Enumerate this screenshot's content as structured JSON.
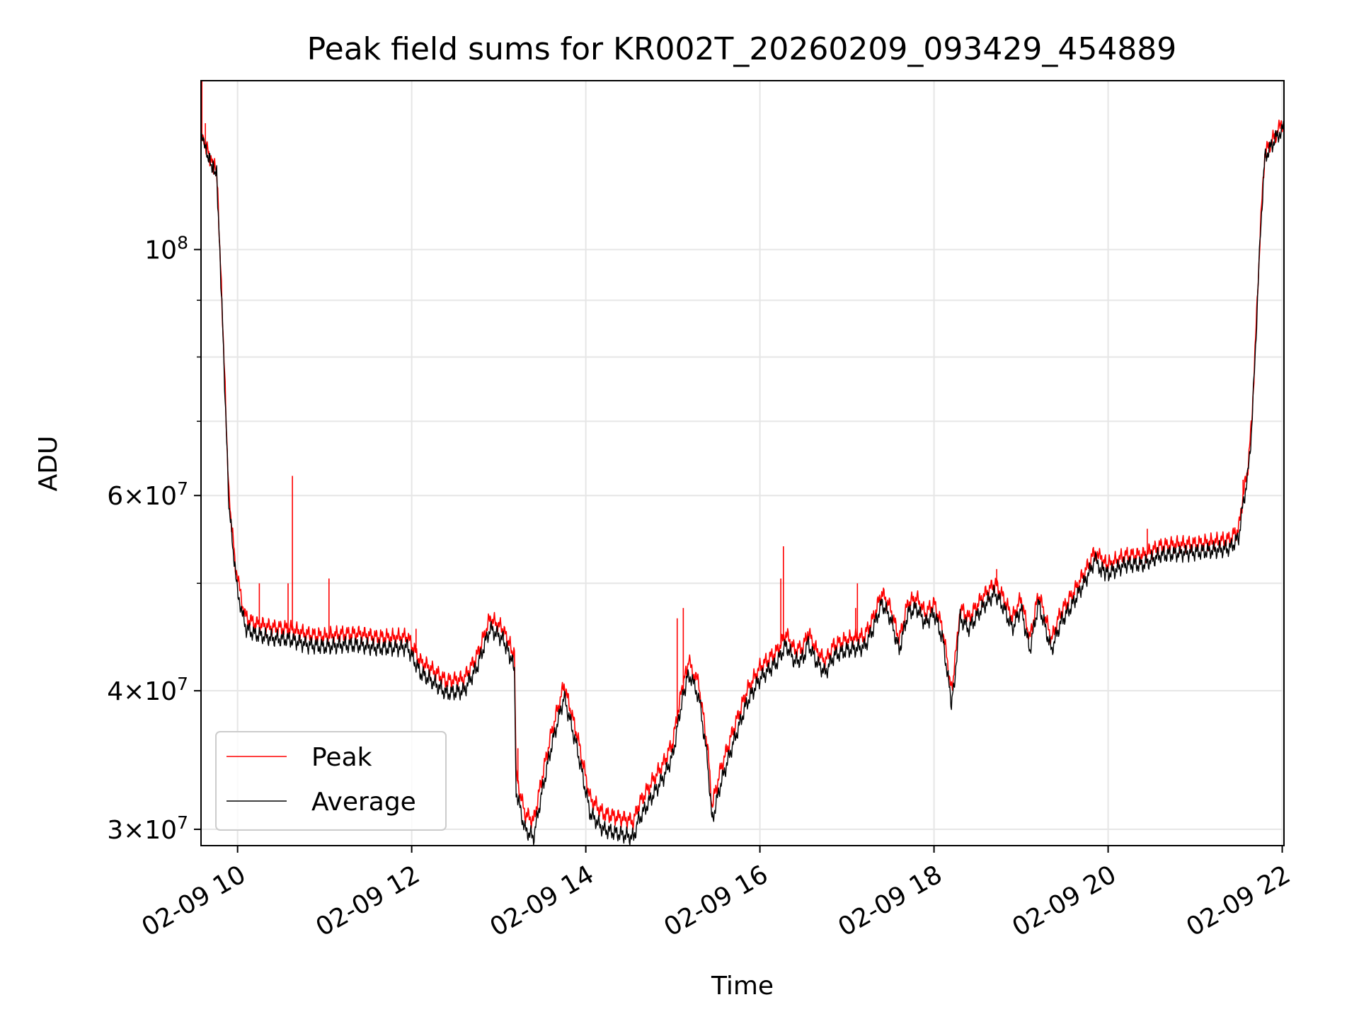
{
  "chart_data": {
    "type": "line",
    "title": "Peak field sums for KR002T_20260209_093429_454889",
    "xlabel": "Time",
    "ylabel": "ADU",
    "yscale": "log",
    "xlim": [
      9.58,
      22.02
    ],
    "ylim": [
      29000000,
      142000000
    ],
    "x_ticks": [
      {
        "value": 10,
        "label": "02-09 10"
      },
      {
        "value": 12,
        "label": "02-09 12"
      },
      {
        "value": 14,
        "label": "02-09 14"
      },
      {
        "value": 16,
        "label": "02-09 16"
      },
      {
        "value": 18,
        "label": "02-09 18"
      },
      {
        "value": 20,
        "label": "02-09 20"
      },
      {
        "value": 22,
        "label": "02-09 22"
      }
    ],
    "y_ticks": [
      {
        "value": 30000000,
        "base": "3",
        "exp": "7"
      },
      {
        "value": 40000000,
        "base": "4",
        "exp": "7"
      },
      {
        "value": 60000000,
        "base": "6",
        "exp": "7"
      },
      {
        "value": 100000000,
        "base": "",
        "exp": "8"
      }
    ],
    "y_minor_ticks": [
      50000000,
      70000000,
      80000000,
      90000000
    ],
    "grid": true,
    "legend_position": "lower-left",
    "series": [
      {
        "name": "Peak",
        "color": "#ff0000",
        "x": [
          9.58,
          9.62,
          9.7,
          9.76,
          9.82,
          9.9,
          9.98,
          10.05,
          10.1,
          10.2,
          10.4,
          10.6,
          10.8,
          11.0,
          11.2,
          11.4,
          11.6,
          11.8,
          11.95,
          12.1,
          12.2,
          12.4,
          12.6,
          12.75,
          12.9,
          13.05,
          13.18,
          13.2,
          13.3,
          13.4,
          13.5,
          13.6,
          13.75,
          13.9,
          14.05,
          14.2,
          14.4,
          14.55,
          14.6,
          14.75,
          14.9,
          15.0,
          15.1,
          15.18,
          15.3,
          15.4,
          15.45,
          15.55,
          15.7,
          15.85,
          16.0,
          16.2,
          16.3,
          16.4,
          16.5,
          16.55,
          16.65,
          16.75,
          16.85,
          17.0,
          17.2,
          17.3,
          17.4,
          17.5,
          17.6,
          17.7,
          17.8,
          17.9,
          18.0,
          18.1,
          18.2,
          18.23,
          18.3,
          18.4,
          18.55,
          18.7,
          18.8,
          18.9,
          19.0,
          19.1,
          19.2,
          19.35,
          19.45,
          19.6,
          19.75,
          19.85,
          19.92,
          20.0,
          20.2,
          20.4,
          20.6,
          20.8,
          21.0,
          21.2,
          21.4,
          21.5,
          21.55,
          21.6,
          21.65,
          21.7,
          21.75,
          21.8,
          21.85,
          21.9,
          21.95,
          22.02
        ],
        "values": [
          128000000,
          125000000,
          120000000,
          118000000,
          90000000,
          60000000,
          51500000,
          48000000,
          46500000,
          46000000,
          45600000,
          45500000,
          45000000,
          44800000,
          45000000,
          45000000,
          44700000,
          44700000,
          44800000,
          42500000,
          42000000,
          40800000,
          41000000,
          43000000,
          46500000,
          45500000,
          43000000,
          33500000,
          31000000,
          30500000,
          33500000,
          36500000,
          40500000,
          36500000,
          32000000,
          31000000,
          30700000,
          30500000,
          31500000,
          33000000,
          34500000,
          36000000,
          40000000,
          42500000,
          40500000,
          35500000,
          31500000,
          34000000,
          37000000,
          40000000,
          42000000,
          43500000,
          45000000,
          43500000,
          43800000,
          45200000,
          43500000,
          42500000,
          44000000,
          44500000,
          44800000,
          46500000,
          49000000,
          47500000,
          44500000,
          48000000,
          48500000,
          47000000,
          48000000,
          45500000,
          40000000,
          41500000,
          47500000,
          46500000,
          48500000,
          50000000,
          48500000,
          46500000,
          48500000,
          44500000,
          49000000,
          44500000,
          47000000,
          49000000,
          51500000,
          53500000,
          52500000,
          52000000,
          53000000,
          53000000,
          54000000,
          54200000,
          54300000,
          54500000,
          54800000,
          56000000,
          60000000,
          63000000,
          70000000,
          85000000,
          105000000,
          122000000,
          124000000,
          126000000,
          128000000,
          130000000
        ]
      },
      {
        "name": "Average",
        "color": "#000000",
        "x": [
          9.58,
          9.62,
          9.7,
          9.76,
          9.82,
          9.9,
          9.98,
          10.05,
          10.1,
          10.2,
          10.4,
          10.6,
          10.8,
          11.0,
          11.2,
          11.4,
          11.6,
          11.8,
          11.95,
          12.1,
          12.2,
          12.4,
          12.6,
          12.75,
          12.9,
          13.05,
          13.18,
          13.2,
          13.3,
          13.4,
          13.5,
          13.6,
          13.75,
          13.9,
          14.05,
          14.2,
          14.4,
          14.55,
          14.6,
          14.75,
          14.9,
          15.0,
          15.1,
          15.18,
          15.3,
          15.4,
          15.45,
          15.55,
          15.7,
          15.85,
          16.0,
          16.2,
          16.3,
          16.4,
          16.5,
          16.55,
          16.65,
          16.75,
          16.85,
          17.0,
          17.2,
          17.3,
          17.4,
          17.5,
          17.6,
          17.7,
          17.8,
          17.9,
          18.0,
          18.1,
          18.2,
          18.23,
          18.3,
          18.4,
          18.55,
          18.7,
          18.8,
          18.9,
          19.0,
          19.1,
          19.2,
          19.35,
          19.45,
          19.6,
          19.75,
          19.85,
          19.92,
          20.0,
          20.2,
          20.4,
          20.6,
          20.8,
          21.0,
          21.2,
          21.4,
          21.5,
          21.55,
          21.6,
          21.65,
          21.7,
          21.75,
          21.8,
          21.85,
          21.9,
          21.95,
          22.02
        ],
        "values": [
          127000000,
          124000000,
          119000000,
          117000000,
          89000000,
          59000000,
          50500000,
          47000000,
          45500000,
          45000000,
          44600000,
          44500000,
          44000000,
          43800000,
          44000000,
          44000000,
          43700000,
          43700000,
          43800000,
          41500000,
          41000000,
          39800000,
          40000000,
          42000000,
          45500000,
          44500000,
          42000000,
          32500000,
          30000000,
          29500000,
          32500000,
          35500000,
          39500000,
          35500000,
          31000000,
          30000000,
          29700000,
          29500000,
          30500000,
          32000000,
          33500000,
          35000000,
          39000000,
          41500000,
          39500000,
          34500000,
          30500000,
          33000000,
          36000000,
          39000000,
          41000000,
          42500000,
          44000000,
          42500000,
          42800000,
          44200000,
          42500000,
          41500000,
          43000000,
          43500000,
          43800000,
          45500000,
          48000000,
          46500000,
          43500000,
          47000000,
          47500000,
          46000000,
          47000000,
          44500000,
          39000000,
          40500000,
          46500000,
          45500000,
          47500000,
          49000000,
          47500000,
          45500000,
          47500000,
          43500000,
          48000000,
          43500000,
          46000000,
          48000000,
          50500000,
          52500000,
          51500000,
          51000000,
          52000000,
          52000000,
          53000000,
          53200000,
          53300000,
          53500000,
          53800000,
          55000000,
          59000000,
          62000000,
          69000000,
          84000000,
          104000000,
          121000000,
          123000000,
          125000000,
          127000000,
          129000000
        ]
      }
    ],
    "spikes": [
      {
        "x": 9.59,
        "value": 142000000
      },
      {
        "x": 9.63,
        "value": 130000000
      },
      {
        "x": 10.63,
        "value": 62500000
      },
      {
        "x": 10.58,
        "value": 50000000
      },
      {
        "x": 11.05,
        "value": 50500000
      },
      {
        "x": 10.25,
        "value": 50000000
      },
      {
        "x": 12.05,
        "value": 45500000
      },
      {
        "x": 13.22,
        "value": 35500000
      },
      {
        "x": 15.05,
        "value": 46500000
      },
      {
        "x": 15.12,
        "value": 47500000
      },
      {
        "x": 16.27,
        "value": 54000000
      },
      {
        "x": 16.24,
        "value": 50500000
      },
      {
        "x": 17.1,
        "value": 47500000
      },
      {
        "x": 17.12,
        "value": 50000000
      },
      {
        "x": 18.72,
        "value": 51500000
      },
      {
        "x": 20.45,
        "value": 56000000
      },
      {
        "x": 21.55,
        "value": 62000000
      }
    ]
  },
  "legend": {
    "peak_label": "Peak",
    "average_label": "Average"
  }
}
